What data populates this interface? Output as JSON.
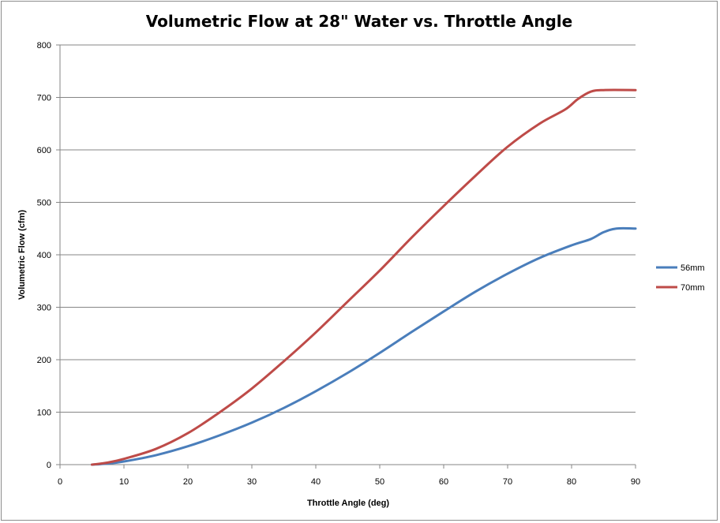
{
  "chart_data": {
    "type": "line",
    "title": "Volumetric Flow at 28\" Water vs. Throttle Angle",
    "xlabel": "Throttle Angle (deg)",
    "ylabel": "Volumetric Flow  (cfm)",
    "xlim": [
      0,
      90
    ],
    "ylim": [
      0,
      800
    ],
    "xticks": [
      0,
      10,
      20,
      30,
      40,
      50,
      60,
      70,
      80,
      90
    ],
    "yticks": [
      0,
      100,
      200,
      300,
      400,
      500,
      600,
      700,
      800
    ],
    "grid": "horizontal",
    "legend": "right",
    "series": [
      {
        "name": "56mm",
        "color": "#4a7ebb",
        "x": [
          5,
          7.5,
          10,
          15,
          20,
          25,
          30,
          35,
          40,
          45,
          50,
          55,
          60,
          65,
          70,
          75,
          80,
          83,
          85,
          87,
          90
        ],
        "y": [
          0,
          2,
          6,
          18,
          35,
          56,
          80,
          108,
          140,
          175,
          213,
          253,
          292,
          330,
          364,
          394,
          418,
          430,
          443,
          450,
          450
        ]
      },
      {
        "name": "70mm",
        "color": "#be4b48",
        "x": [
          5,
          7.5,
          10,
          15,
          20,
          25,
          30,
          35,
          40,
          45,
          50,
          55,
          60,
          65,
          70,
          75,
          79,
          81,
          83,
          85,
          90
        ],
        "y": [
          0,
          4,
          11,
          30,
          60,
          100,
          145,
          197,
          252,
          311,
          370,
          433,
          493,
          551,
          606,
          650,
          677,
          697,
          711,
          714,
          714
        ]
      }
    ]
  }
}
